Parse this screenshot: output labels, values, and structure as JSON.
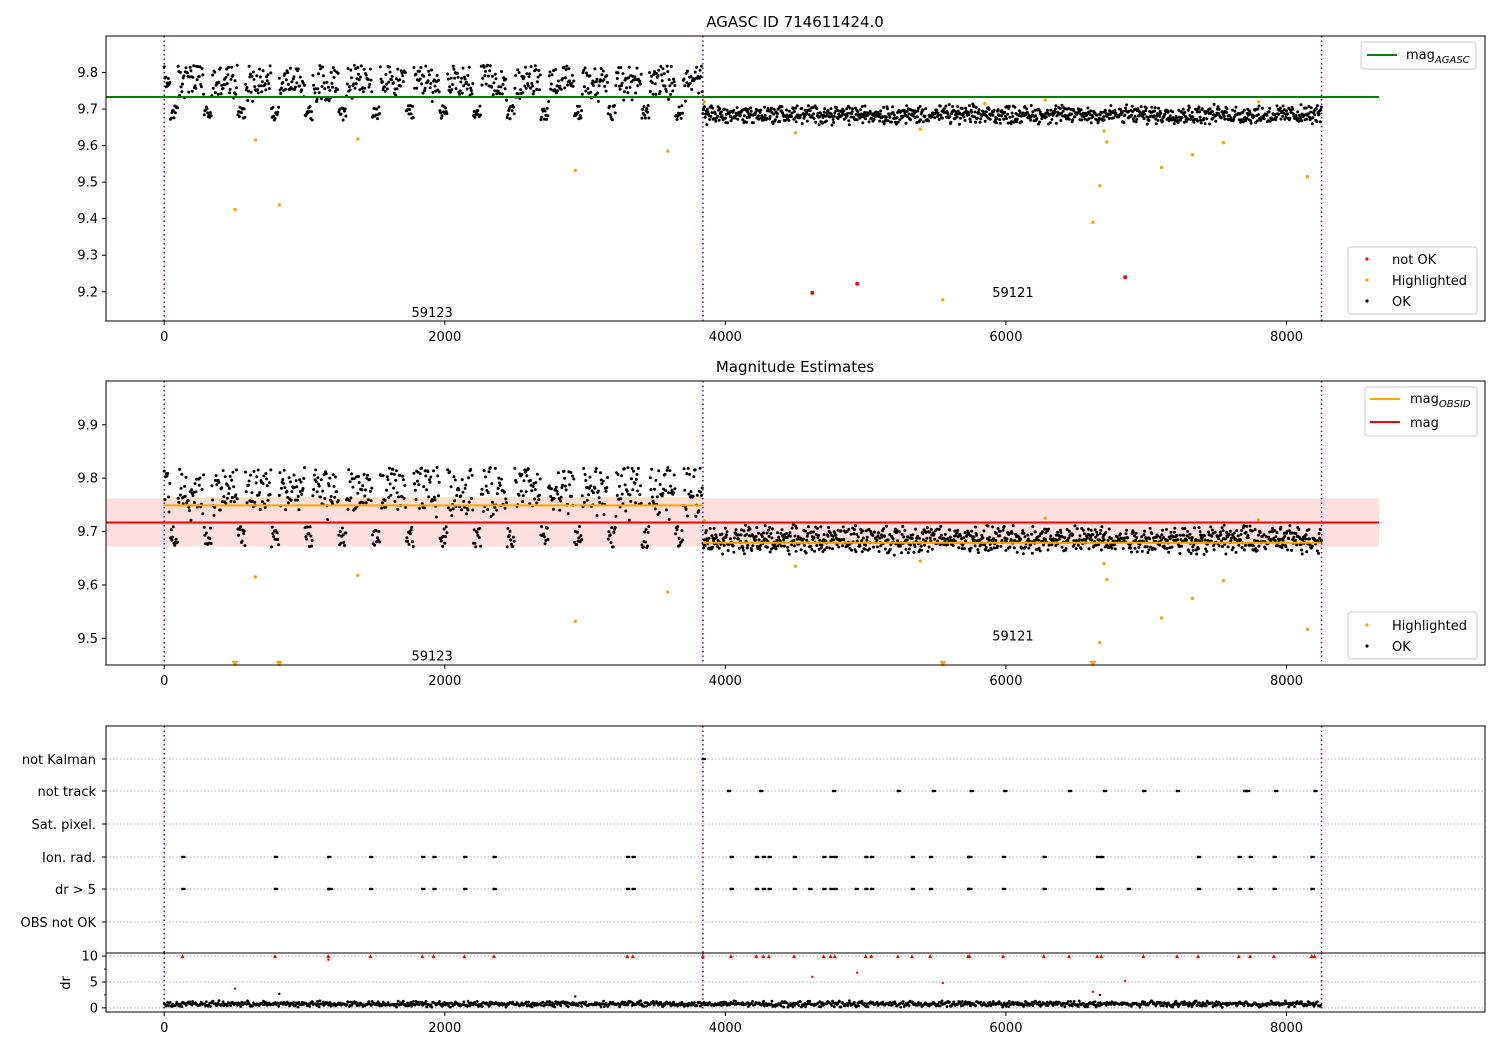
{
  "chart_data": [
    {
      "type": "scatter",
      "title": "AGASC ID 714611424.0",
      "xlim": [
        -415,
        9415
      ],
      "ylim": [
        9.12,
        9.9
      ],
      "xticks": [
        0,
        2000,
        4000,
        6000,
        8000
      ],
      "xtick_labels": [
        "0",
        "2000",
        "4000",
        "6000",
        "8000"
      ],
      "yticks": [
        9.2,
        9.3,
        9.4,
        9.5,
        9.6,
        9.7,
        9.8
      ],
      "ytick_labels": [
        "9.2",
        "9.3",
        "9.4",
        "9.5",
        "9.6",
        "9.7",
        "9.8"
      ],
      "obs_boundaries": [
        0,
        3840,
        8250
      ],
      "obs_labels": [
        {
          "text": "59123",
          "x": 1910,
          "y": 9.145
        },
        {
          "text": "59121",
          "x": 6050,
          "y": 9.2
        }
      ],
      "reference_lines": [
        {
          "name": "mag_AGASC",
          "value": 9.733,
          "x_range": [
            -415,
            8660
          ],
          "color": "#008000"
        }
      ],
      "legends": [
        {
          "position": "top-right",
          "entries": [
            {
              "label": "mag",
              "subscript": "AGASC",
              "kind": "line",
              "color": "#008000"
            }
          ]
        },
        {
          "position": "bottom-right",
          "entries": [
            {
              "label": "not OK",
              "kind": "dot",
              "color": "#ff0000"
            },
            {
              "label": "Highlighted",
              "kind": "dot",
              "color": "#ffa500"
            },
            {
              "label": "OK",
              "kind": "dot",
              "color": "#000000"
            }
          ]
        }
      ],
      "series": [
        {
          "name": "OK",
          "color": "#000000",
          "segments": [
            {
              "x_range": [
                0,
                3840
              ],
              "pattern": "two-band",
              "upper_band": [
                9.74,
                9.82
              ],
              "lower_band": [
                9.67,
                9.71
              ],
              "cycle": 240
            },
            {
              "x_range": [
                3840,
                8250
              ],
              "pattern": "noise",
              "band": [
                9.655,
                9.715
              ]
            }
          ]
        },
        {
          "name": "Highlighted",
          "color": "#ffa500",
          "points": [
            [
              505,
              9.425
            ],
            [
              650,
              9.615
            ],
            [
              820,
              9.438
            ],
            [
              1380,
              9.618
            ],
            [
              2930,
              9.532
            ],
            [
              3590,
              9.585
            ],
            [
              4500,
              9.635
            ],
            [
              5390,
              9.645
            ],
            [
              5550,
              9.178
            ],
            [
              6620,
              9.39
            ],
            [
              6670,
              9.49
            ],
            [
              6700,
              9.64
            ],
            [
              6720,
              9.61
            ],
            [
              7110,
              9.54
            ],
            [
              7330,
              9.575
            ],
            [
              7550,
              9.608
            ],
            [
              8150,
              9.515
            ],
            [
              7800,
              9.72
            ],
            [
              5850,
              9.715
            ],
            [
              6280,
              9.725
            ],
            [
              3850,
              9.72
            ]
          ]
        },
        {
          "name": "not OK",
          "color": "#ff0000",
          "points": [
            [
              4620,
              9.197
            ],
            [
              4940,
              9.222
            ],
            [
              6850,
              9.24
            ]
          ]
        }
      ]
    },
    {
      "type": "scatter",
      "title": "Magnitude Estimates",
      "xlim": [
        -415,
        9415
      ],
      "ylim": [
        9.45,
        9.982
      ],
      "xticks": [
        0,
        2000,
        4000,
        6000,
        8000
      ],
      "xtick_labels": [
        "0",
        "2000",
        "4000",
        "6000",
        "8000"
      ],
      "yticks": [
        9.5,
        9.6,
        9.7,
        9.8,
        9.9
      ],
      "ytick_labels": [
        "9.5",
        "9.6",
        "9.7",
        "9.8",
        "9.9"
      ],
      "obs_boundaries": [
        0,
        3840,
        8250
      ],
      "obs_labels": [
        {
          "text": "59123",
          "x": 1910,
          "y": 9.468
        },
        {
          "text": "59121",
          "x": 6050,
          "y": 9.505
        }
      ],
      "bands": [
        {
          "name": "mag_OBSID 1",
          "range": [
            9.735,
            9.765
          ],
          "x_range": [
            0,
            3840
          ],
          "color": "#ffe5b4"
        },
        {
          "name": "mag_OBSID 2",
          "range": [
            9.67,
            9.69
          ],
          "x_range": [
            3840,
            8250
          ],
          "color": "#ffe5b4"
        },
        {
          "name": "mag",
          "range": [
            9.672,
            9.762
          ],
          "x_range": [
            -415,
            8660
          ],
          "color": "#ffdddd"
        }
      ],
      "reference_lines": [
        {
          "name": "mag",
          "value": 9.717,
          "x_range": [
            -415,
            8660
          ],
          "color": "#ff0000"
        },
        {
          "name": "mag_OBSID 1",
          "value": 9.749,
          "x_range": [
            0,
            3840
          ],
          "color": "#ffa500"
        },
        {
          "name": "mag_OBSID 2",
          "value": 9.679,
          "x_range": [
            3840,
            8250
          ],
          "color": "#ffa500"
        }
      ],
      "legends": [
        {
          "position": "top-right",
          "entries": [
            {
              "label": "mag",
              "subscript": "OBSID",
              "kind": "line",
              "color": "#ffa500"
            },
            {
              "label": "mag",
              "subscript": "",
              "kind": "line",
              "color": "#ff0000"
            }
          ]
        },
        {
          "position": "bottom-right",
          "entries": [
            {
              "label": "Highlighted",
              "kind": "dot",
              "color": "#ffa500"
            },
            {
              "label": "OK",
              "kind": "dot",
              "color": "#000000"
            }
          ]
        }
      ],
      "series": [
        {
          "name": "OK",
          "color": "#000000",
          "segments": [
            {
              "x_range": [
                0,
                3840
              ],
              "pattern": "two-band",
              "upper_band": [
                9.74,
                9.82
              ],
              "lower_band": [
                9.67,
                9.71
              ],
              "cycle": 240
            },
            {
              "x_range": [
                3840,
                8250
              ],
              "pattern": "noise",
              "band": [
                9.655,
                9.715
              ]
            }
          ]
        },
        {
          "name": "Highlighted",
          "color": "#ffa500",
          "points": [
            [
              650,
              9.615
            ],
            [
              1380,
              9.618
            ],
            [
              2930,
              9.532
            ],
            [
              3590,
              9.587
            ],
            [
              4500,
              9.635
            ],
            [
              5390,
              9.645
            ],
            [
              6670,
              9.492
            ],
            [
              6700,
              9.64
            ],
            [
              6720,
              9.61
            ],
            [
              7110,
              9.538
            ],
            [
              7330,
              9.575
            ],
            [
              7550,
              9.608
            ],
            [
              8150,
              9.517
            ],
            [
              7800,
              9.722
            ],
            [
              5850,
              9.715
            ],
            [
              6280,
              9.725
            ],
            [
              3850,
              9.72
            ]
          ]
        },
        {
          "name": "Highlighted (clipped below)",
          "color": "#ffa500",
          "marker": "triangle-down",
          "points": [
            [
              505,
              9.452
            ],
            [
              820,
              9.452
            ],
            [
              5550,
              9.452
            ],
            [
              6620,
              9.452
            ]
          ]
        }
      ]
    },
    {
      "type": "scatter",
      "title": "",
      "xlim": [
        -415,
        9415
      ],
      "categories": [
        "not Kalman",
        "not track",
        "Sat. pixel.",
        "Ion. rad.",
        "dr > 5",
        "OBS not OK"
      ],
      "flags": {
        "not Kalman": [
          3840
        ],
        "not track": [
          4020,
          4250,
          4770,
          5230,
          5480,
          5750,
          5990,
          6450,
          6700,
          6980,
          7220,
          7700,
          7720,
          7920,
          8200
        ],
        "Sat. pixel.": [],
        "Ion. rad.": [
          130,
          790,
          1170,
          1470,
          1840,
          1920,
          2140,
          2350,
          3300,
          3340,
          4040,
          4220,
          4270,
          4310,
          4490,
          4700,
          4750,
          4780,
          5000,
          5040,
          5330,
          5460,
          5730,
          5740,
          5980,
          6270,
          6650,
          6680,
          7370,
          7660,
          7740,
          7910,
          8180
        ],
        "dr > 5": [
          130,
          790,
          1170,
          1180,
          1470,
          1840,
          1920,
          2140,
          2350,
          3300,
          3340,
          4040,
          4220,
          4270,
          4310,
          4490,
          4600,
          4700,
          4750,
          4780,
          4930,
          5000,
          5040,
          5330,
          5460,
          5730,
          5740,
          5980,
          6270,
          6650,
          6680,
          6870,
          7370,
          7660,
          7740,
          7910,
          8180
        ],
        "OBS not OK": []
      }
    },
    {
      "type": "scatter",
      "title": "",
      "ylabel": "dr",
      "xlim": [
        -415,
        9415
      ],
      "ylim": [
        -0.8,
        10.6
      ],
      "xticks": [
        0,
        2000,
        4000,
        6000,
        8000
      ],
      "xtick_labels": [
        "0",
        "2000",
        "4000",
        "6000",
        "8000"
      ],
      "yticks": [
        0,
        5,
        10
      ],
      "ytick_labels": [
        "0",
        "5",
        "10"
      ],
      "series": [
        {
          "name": "dr OK",
          "color": "#000000",
          "pattern": "noise",
          "band": [
            0.1,
            1.4
          ]
        },
        {
          "name": "dr capped",
          "color": "#ff0000",
          "marker": "triangle-up",
          "value": 10,
          "x": [
            130,
            790,
            1170,
            1470,
            1840,
            1920,
            2140,
            2350,
            3300,
            3340,
            3840,
            4040,
            4220,
            4270,
            4310,
            4490,
            4700,
            4750,
            4780,
            5000,
            5040,
            5230,
            5330,
            5460,
            5730,
            5740,
            5980,
            6270,
            6450,
            6650,
            6680,
            6980,
            7220,
            7370,
            7660,
            7740,
            7910,
            8180,
            8200
          ]
        },
        {
          "name": "dr high",
          "color": "#ff0000",
          "points": [
            [
              505,
              3.7
            ],
            [
              1170,
              9.3
            ],
            [
              4620,
              6.0
            ],
            [
              4940,
              6.8
            ],
            [
              5550,
              4.8
            ],
            [
              6620,
              3.1
            ],
            [
              6850,
              5.2
            ]
          ]
        },
        {
          "name": "dr mid",
          "color": "#000000",
          "points": [
            [
              820,
              2.7
            ],
            [
              2930,
              2.2
            ],
            [
              6670,
              2.5
            ]
          ]
        }
      ]
    }
  ]
}
